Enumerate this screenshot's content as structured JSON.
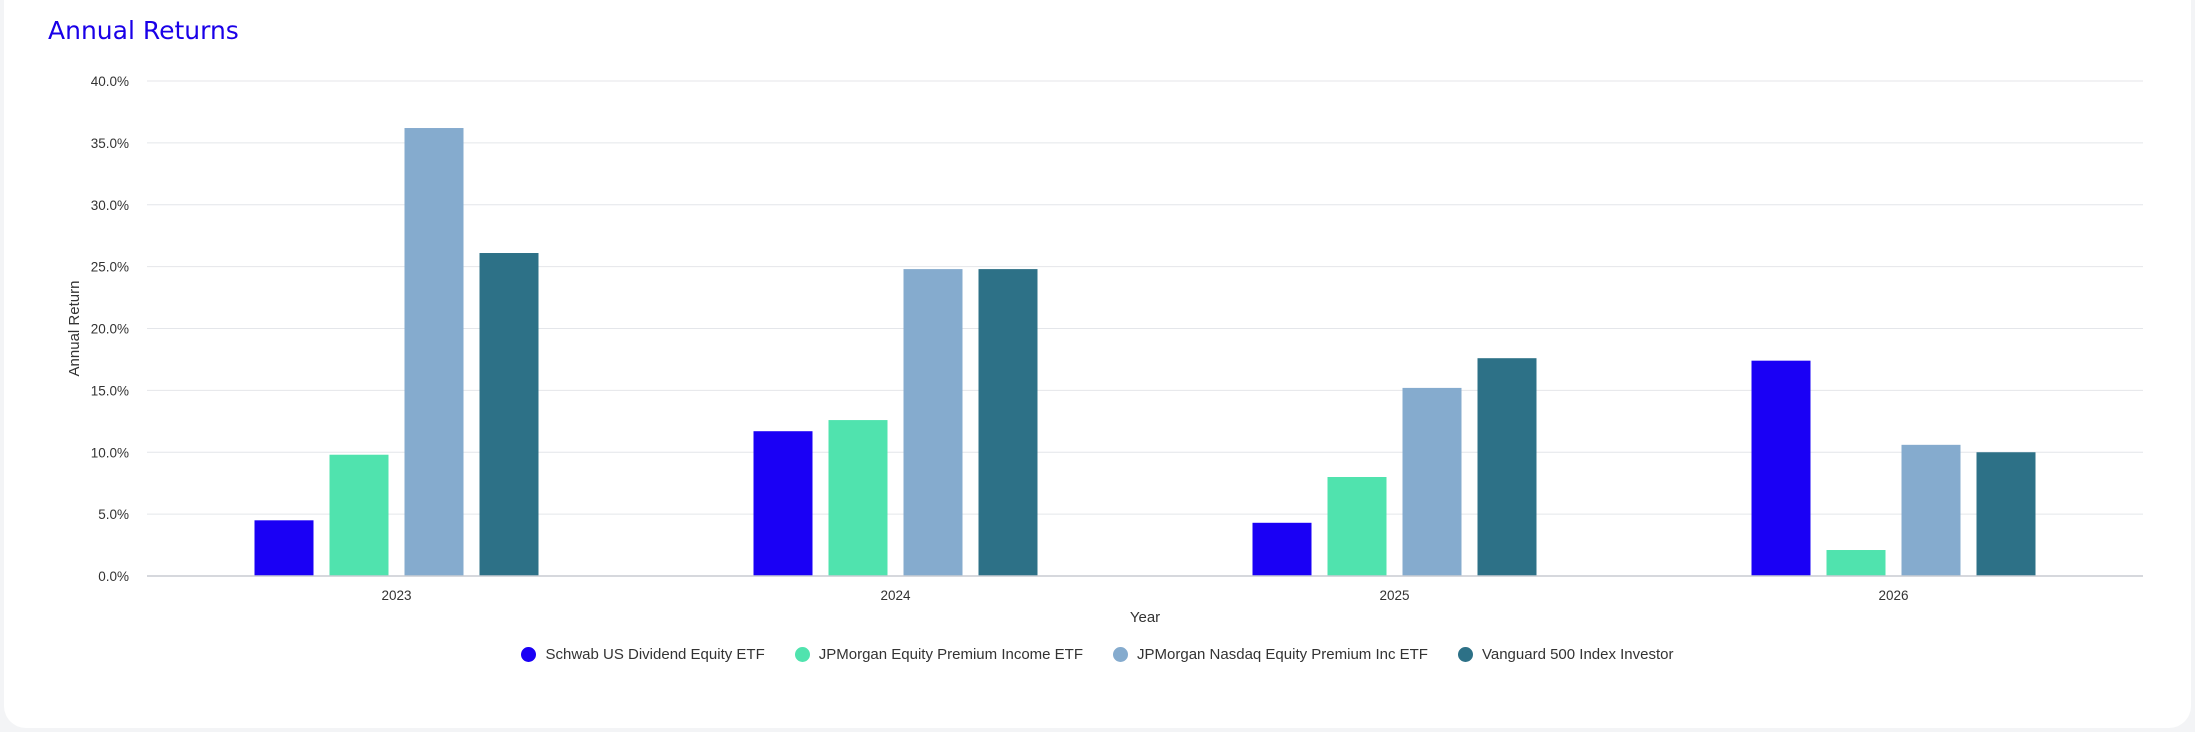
{
  "chart_data": {
    "type": "bar",
    "title": "Annual Returns",
    "xlabel": "Year",
    "ylabel": "Annual Return",
    "categories": [
      "2023",
      "2024",
      "2025",
      "2026"
    ],
    "series": [
      {
        "name": "Schwab US Dividend Equity ETF",
        "color": "#1a00f5",
        "values": [
          4.5,
          11.7,
          4.3,
          17.4
        ]
      },
      {
        "name": "JPMorgan Equity Premium Income ETF",
        "color": "#50e3ae",
        "values": [
          9.8,
          12.6,
          8.0,
          2.1
        ]
      },
      {
        "name": "JPMorgan Nasdaq Equity Premium Inc ETF",
        "color": "#85abce",
        "values": [
          36.2,
          24.8,
          15.2,
          10.6
        ]
      },
      {
        "name": "Vanguard 500 Index Investor",
        "color": "#2d7187",
        "values": [
          26.1,
          24.8,
          17.6,
          10.0
        ]
      }
    ],
    "ylim": [
      0,
      40
    ],
    "yticks": [
      "0.0%",
      "5.0%",
      "10.0%",
      "15.0%",
      "20.0%",
      "25.0%",
      "30.0%",
      "35.0%",
      "40.0%"
    ],
    "ytick_values": [
      0,
      5,
      10,
      15,
      20,
      25,
      30,
      35,
      40
    ],
    "grid": true,
    "legend_position": "bottom-center"
  }
}
